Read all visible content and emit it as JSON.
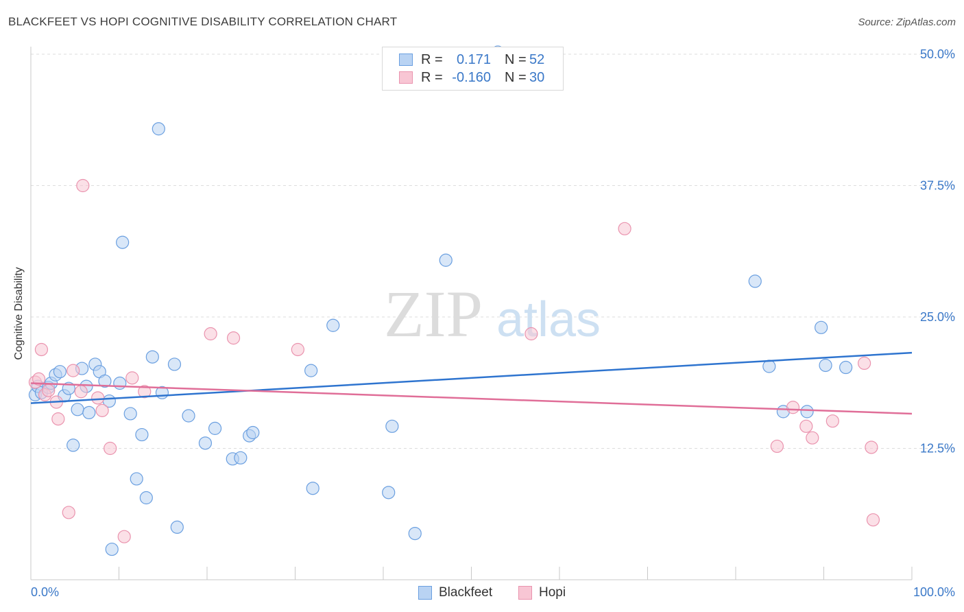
{
  "title": "BLACKFEET VS HOPI COGNITIVE DISABILITY CORRELATION CHART",
  "source": "Source: ZipAtlas.com",
  "watermark": {
    "zip": "ZIP",
    "atlas": "atlas"
  },
  "colors": {
    "blackfeet_fill": "#b9d3f3",
    "blackfeet_stroke": "#6a9fe0",
    "blackfeet_line": "#2e74cf",
    "hopi_fill": "#f8c6d4",
    "hopi_stroke": "#ea93ae",
    "hopi_line": "#e06e98",
    "tick_label": "#3a78c8",
    "grid": "#dcdcdc"
  },
  "stats": {
    "r_label": "R =",
    "n_label": "N =",
    "blackfeet": {
      "r": "0.171",
      "n": "52"
    },
    "hopi": {
      "r": "-0.160",
      "n": "30"
    }
  },
  "legend": {
    "blackfeet": "Blackfeet",
    "hopi": "Hopi"
  },
  "chart_data": {
    "type": "scatter",
    "title": "BLACKFEET VS HOPI COGNITIVE DISABILITY CORRELATION CHART",
    "xlabel": "",
    "ylabel": "Cognitive Disability",
    "xlim": [
      0,
      100
    ],
    "ylim": [
      0,
      50
    ],
    "x_tick_labels": [
      "0.0%",
      "100.0%"
    ],
    "y_ticks": [
      12.5,
      25.0,
      37.5,
      50.0
    ],
    "y_tick_labels": [
      "12.5%",
      "25.0%",
      "37.5%",
      "50.0%"
    ],
    "grid": true,
    "legend_position": "bottom",
    "series": [
      {
        "name": "Blackfeet",
        "points": [
          [
            0.5,
            17.6
          ],
          [
            0.8,
            18.4
          ],
          [
            1.2,
            17.8
          ],
          [
            2.0,
            18.3
          ],
          [
            2.3,
            18.7
          ],
          [
            2.8,
            19.5
          ],
          [
            3.3,
            19.8
          ],
          [
            3.8,
            17.5
          ],
          [
            4.3,
            18.2
          ],
          [
            4.8,
            12.8
          ],
          [
            5.3,
            16.2
          ],
          [
            5.8,
            20.1
          ],
          [
            6.3,
            18.4
          ],
          [
            6.6,
            15.9
          ],
          [
            7.3,
            20.5
          ],
          [
            7.8,
            19.8
          ],
          [
            8.4,
            18.9
          ],
          [
            8.9,
            17.0
          ],
          [
            9.2,
            2.9
          ],
          [
            10.1,
            18.7
          ],
          [
            10.4,
            32.1
          ],
          [
            11.3,
            15.8
          ],
          [
            12.0,
            9.6
          ],
          [
            12.6,
            13.8
          ],
          [
            13.1,
            7.8
          ],
          [
            13.8,
            21.2
          ],
          [
            14.5,
            42.9
          ],
          [
            14.9,
            17.8
          ],
          [
            16.3,
            20.5
          ],
          [
            16.6,
            5.0
          ],
          [
            17.9,
            15.6
          ],
          [
            19.8,
            13.0
          ],
          [
            20.9,
            14.4
          ],
          [
            22.9,
            11.5
          ],
          [
            23.8,
            11.6
          ],
          [
            24.8,
            13.7
          ],
          [
            25.2,
            14.0
          ],
          [
            31.8,
            19.9
          ],
          [
            32.0,
            8.7
          ],
          [
            34.3,
            24.2
          ],
          [
            40.6,
            8.3
          ],
          [
            41.0,
            14.6
          ],
          [
            43.6,
            4.4
          ],
          [
            47.1,
            30.4
          ],
          [
            82.2,
            28.4
          ],
          [
            83.8,
            20.3
          ],
          [
            85.4,
            16.0
          ],
          [
            88.1,
            16.0
          ],
          [
            89.7,
            24.0
          ],
          [
            90.2,
            20.4
          ],
          [
            92.5,
            20.2
          ],
          [
            53.0,
            50.2
          ]
        ]
      },
      {
        "name": "Hopi",
        "points": [
          [
            0.5,
            18.8
          ],
          [
            0.9,
            19.1
          ],
          [
            1.2,
            21.9
          ],
          [
            1.6,
            17.6
          ],
          [
            2.0,
            18.0
          ],
          [
            2.9,
            16.9
          ],
          [
            3.1,
            15.3
          ],
          [
            4.3,
            6.4
          ],
          [
            4.8,
            19.9
          ],
          [
            5.7,
            17.9
          ],
          [
            5.9,
            37.5
          ],
          [
            7.6,
            17.3
          ],
          [
            8.1,
            16.1
          ],
          [
            9.0,
            12.5
          ],
          [
            10.6,
            4.1
          ],
          [
            11.5,
            19.2
          ],
          [
            12.9,
            17.9
          ],
          [
            20.4,
            23.4
          ],
          [
            23.0,
            23.0
          ],
          [
            30.3,
            21.9
          ],
          [
            56.8,
            23.4
          ],
          [
            67.4,
            33.4
          ],
          [
            84.7,
            12.7
          ],
          [
            86.5,
            16.4
          ],
          [
            88.0,
            14.6
          ],
          [
            88.7,
            13.5
          ],
          [
            91.0,
            15.1
          ],
          [
            94.6,
            20.6
          ],
          [
            95.4,
            12.6
          ],
          [
            95.6,
            5.7
          ]
        ]
      }
    ],
    "trendlines": [
      {
        "name": "Blackfeet",
        "from": [
          0,
          16.8
        ],
        "to": [
          100,
          21.6
        ]
      },
      {
        "name": "Hopi",
        "from": [
          0,
          18.7
        ],
        "to": [
          100,
          15.8
        ]
      }
    ]
  }
}
